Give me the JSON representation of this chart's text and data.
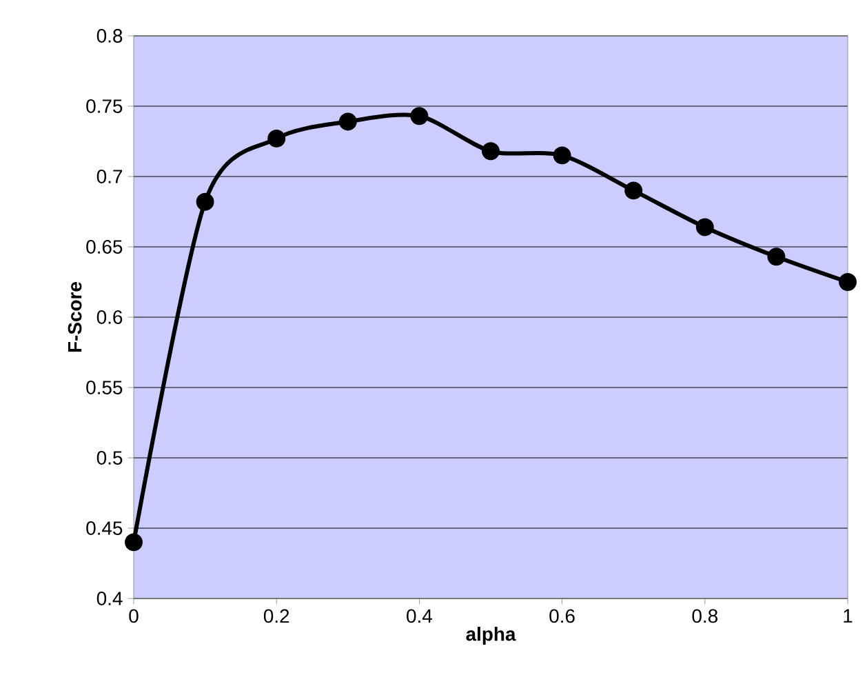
{
  "chart_data": {
    "type": "line",
    "xlabel": "alpha",
    "ylabel": "F-Score",
    "x": [
      0,
      0.1,
      0.2,
      0.3,
      0.4,
      0.5,
      0.6,
      0.7,
      0.8,
      0.9,
      1
    ],
    "series": [
      {
        "color": "#000000",
        "values": [
          0.44,
          0.682,
          0.727,
          0.739,
          0.743,
          0.718,
          0.715,
          0.69,
          0.664,
          0.643,
          0.625
        ]
      }
    ],
    "xlim": [
      0,
      1
    ],
    "ylim": [
      0.4,
      0.8
    ],
    "xticks": [
      0,
      0.2,
      0.4,
      0.6,
      0.8,
      1
    ],
    "yticks": [
      0.4,
      0.45,
      0.5,
      0.55,
      0.6,
      0.65,
      0.7,
      0.75,
      0.8
    ],
    "grid": "y",
    "marker": "circle",
    "line_style": "solid"
  }
}
